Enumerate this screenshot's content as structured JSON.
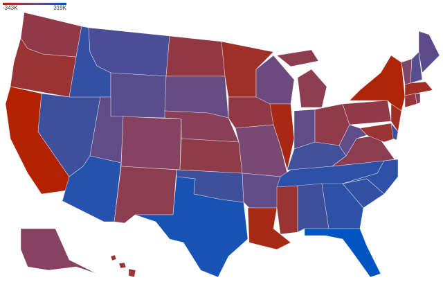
{
  "chart_data": {
    "type": "choropleth",
    "scale": {
      "min": {
        "value": -343000,
        "label": "-343K"
      },
      "max": {
        "value": 319000,
        "label": "319K"
      },
      "colors": [
        "#b22200",
        "#7a4a78",
        "#0055c2"
      ]
    },
    "values": {
      "CA": -343000,
      "OR": -200000,
      "WA": -150000,
      "NV": 150000,
      "ID": 180000,
      "MT": 120000,
      "WY": 80000,
      "UT": 60000,
      "CO": -80000,
      "AZ": 220000,
      "NM": -120000,
      "ND": -160000,
      "SD": 40000,
      "NE": -100000,
      "KS": -140000,
      "OK": 150000,
      "TX": 260000,
      "MN": -230000,
      "IA": -150000,
      "MO": -20000,
      "AR": 60000,
      "LA": -280000,
      "WI": 20000,
      "IL": -290000,
      "MI": -120000,
      "IN": 60000,
      "OH": -140000,
      "KY": 140000,
      "TN": 200000,
      "MS": -200000,
      "AL": 150000,
      "GA": 200000,
      "FL": 319000,
      "SC": 180000,
      "NC": 200000,
      "VA": -120000,
      "WV": 60000,
      "PA": -150000,
      "NY": -320000,
      "NJ": -240000,
      "MD": -200000,
      "DE": 150000,
      "VT": -50000,
      "NH": 80000,
      "ME": 70000,
      "MA": -240000,
      "CT": -180000,
      "RI": -80000,
      "AK": -80000,
      "HI": -200000
    }
  }
}
